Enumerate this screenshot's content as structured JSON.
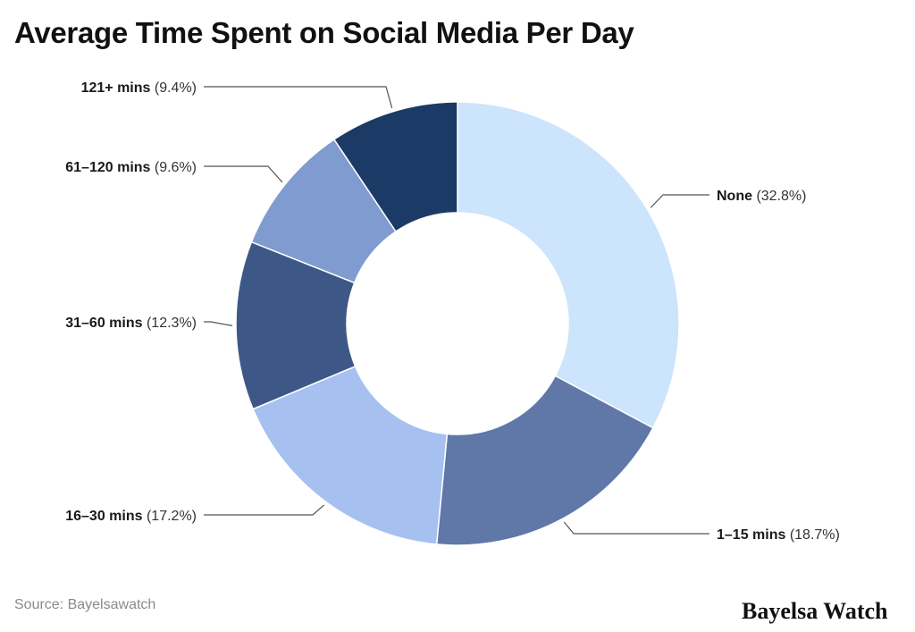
{
  "chart_data": {
    "type": "pie",
    "donut": true,
    "title": "Average Time Spent on Social Media Per Day",
    "source": "Source: Bayelsawatch",
    "slices": [
      {
        "label": "None",
        "value": 32.8,
        "pct_label": "(32.8%)",
        "color": "#cce4fc"
      },
      {
        "label": "1–15 mins",
        "value": 18.7,
        "pct_label": "(18.7%)",
        "color": "#5f78a8"
      },
      {
        "label": "16–30 mins",
        "value": 17.2,
        "pct_label": "(17.2%)",
        "color": "#a6c0f0"
      },
      {
        "label": "31–60 mins",
        "value": 12.3,
        "pct_label": "(12.3%)",
        "color": "#3d5886"
      },
      {
        "label": "61–120 mins",
        "value": 9.6,
        "pct_label": "(9.6%)",
        "color": "#7f9bcf"
      },
      {
        "label": "121+ mins",
        "value": 9.4,
        "pct_label": "(9.4%)",
        "color": "#1c3a66"
      }
    ]
  },
  "brand": "Bayelsa Watch"
}
